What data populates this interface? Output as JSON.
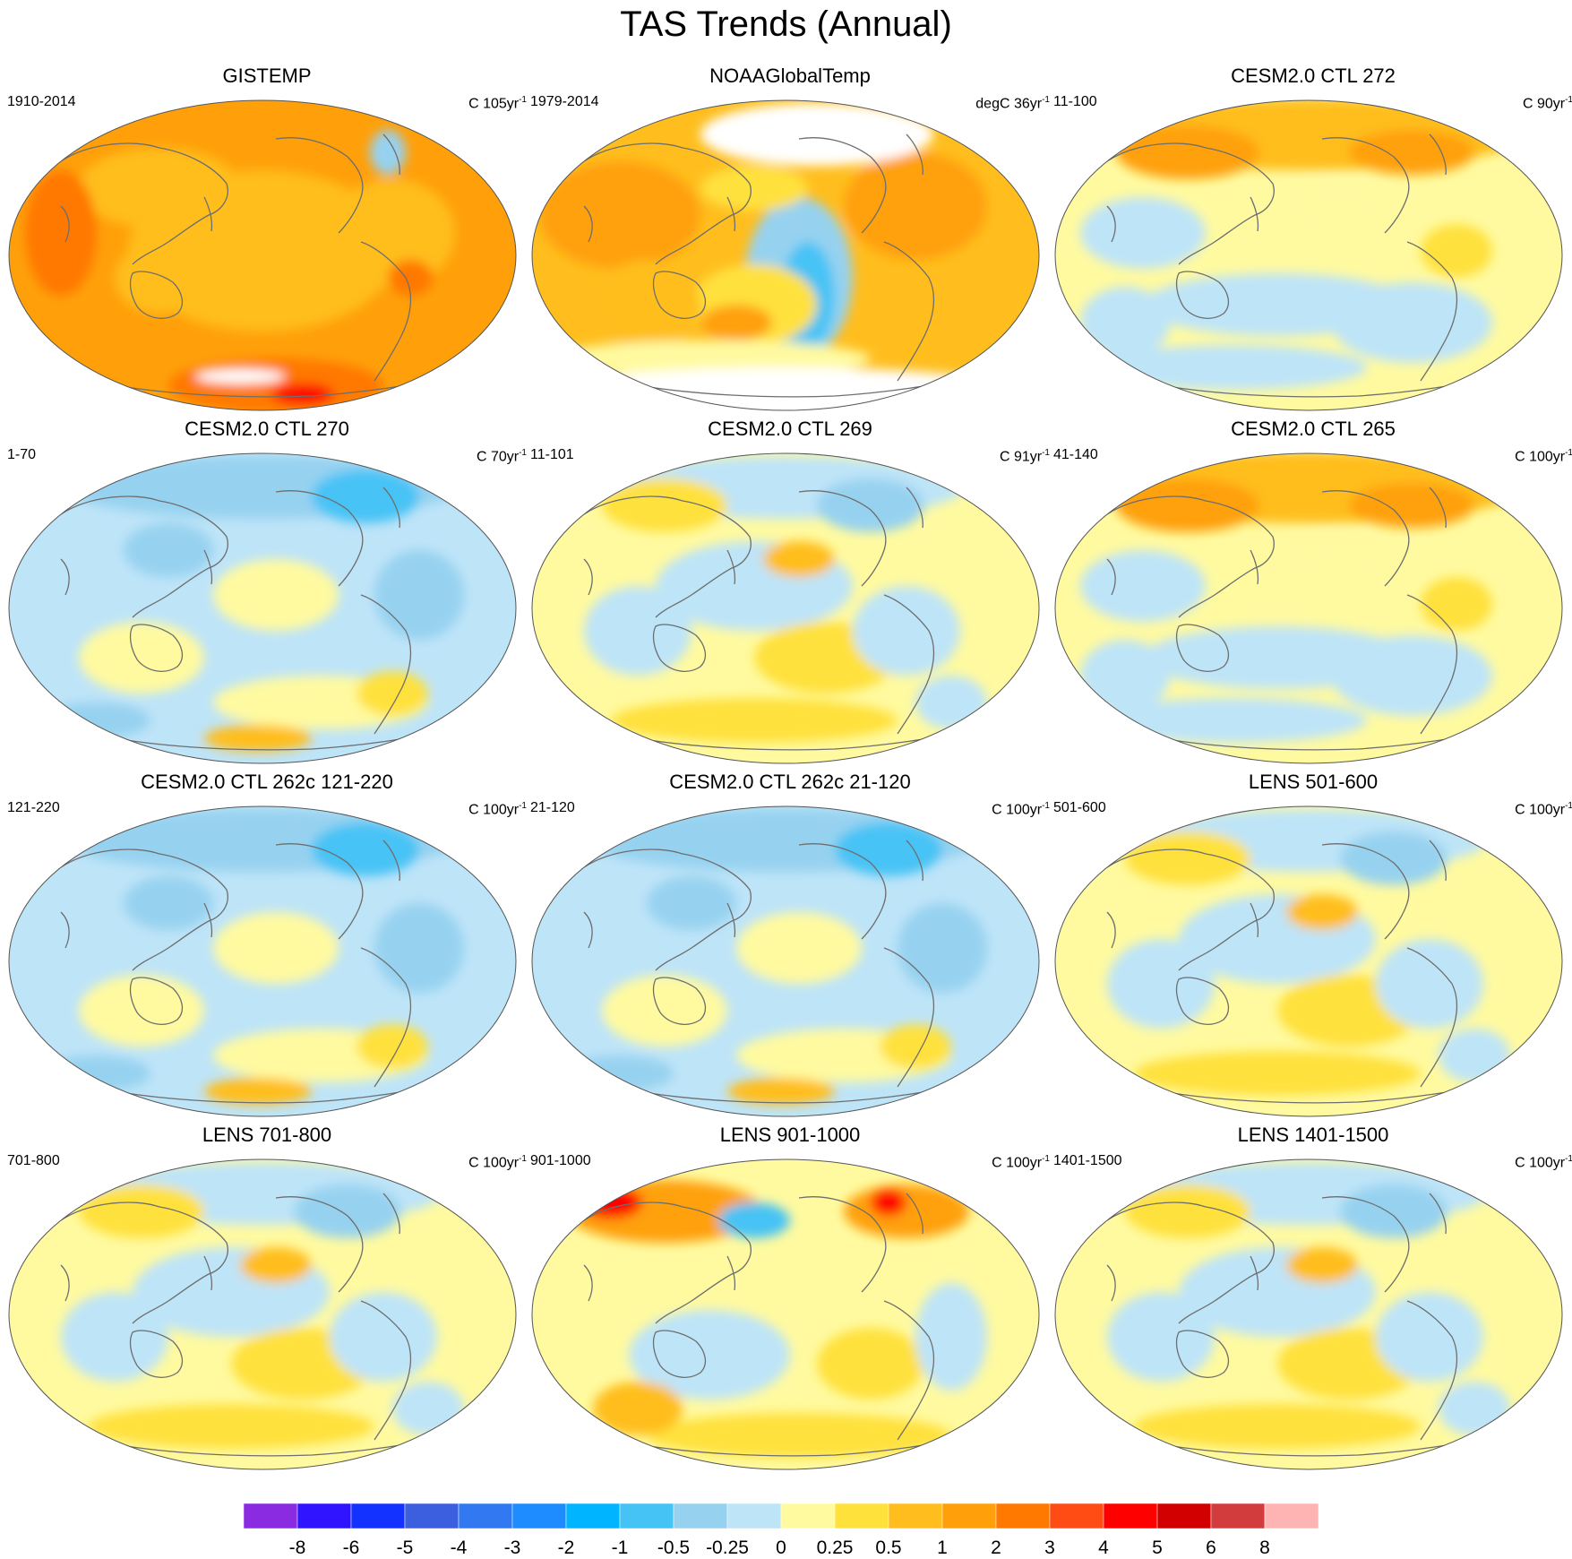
{
  "title": "TAS Trends (Annual)",
  "panels": [
    {
      "title": "GISTEMP",
      "period": "1910-2014",
      "units_prefix": "C 105yr",
      "units_exp": "-1",
      "pattern": "gistemp"
    },
    {
      "title": "NOAAGlobalTemp",
      "period": "1979-2014",
      "units_prefix": "degC 36yr",
      "units_exp": "-1",
      "pattern": "noaa"
    },
    {
      "title": "CESM2.0 CTL 272",
      "period": "11-100",
      "units_prefix": "C 90yr",
      "units_exp": "-1",
      "pattern": "mixwarm"
    },
    {
      "title": "CESM2.0 CTL 270",
      "period": "1-70",
      "units_prefix": "C 70yr",
      "units_exp": "-1",
      "pattern": "cool"
    },
    {
      "title": "CESM2.0 CTL 269",
      "period": "11-101",
      "units_prefix": "C 91yr",
      "units_exp": "-1",
      "pattern": "mix"
    },
    {
      "title": "CESM2.0 CTL 265",
      "period": "41-140",
      "units_prefix": "C 100yr",
      "units_exp": "-1",
      "pattern": "mixwarm"
    },
    {
      "title": "CESM2.0 CTL 262c 121-220",
      "period": "121-220",
      "units_prefix": "C 100yr",
      "units_exp": "-1",
      "pattern": "cool"
    },
    {
      "title": "CESM2.0 CTL 262c 21-120",
      "period": "21-120",
      "units_prefix": "C 100yr",
      "units_exp": "-1",
      "pattern": "cool"
    },
    {
      "title": "LENS 501-600",
      "period": "501-600",
      "units_prefix": "C 100yr",
      "units_exp": "-1",
      "pattern": "mix"
    },
    {
      "title": "LENS 701-800",
      "period": "701-800",
      "units_prefix": "C 100yr",
      "units_exp": "-1",
      "pattern": "mix"
    },
    {
      "title": "LENS 901-1000",
      "period": "901-1000",
      "units_prefix": "C 100yr",
      "units_exp": "-1",
      "pattern": "warm"
    },
    {
      "title": "LENS 1401-1500",
      "period": "1401-1500",
      "units_prefix": "C 100yr",
      "units_exp": "-1",
      "pattern": "mix"
    }
  ],
  "colorbar": {
    "tick_labels": [
      "-8",
      "-6",
      "-5",
      "-4",
      "-3",
      "-2",
      "-1",
      "-0.5",
      "-0.25",
      "0",
      "0.25",
      "0.5",
      "1",
      "2",
      "3",
      "4",
      "5",
      "6",
      "8"
    ],
    "colors": [
      "#8a2be2",
      "#3014ff",
      "#1432ff",
      "#3c5fe0",
      "#3278f0",
      "#1e8cff",
      "#00b4ff",
      "#46c3f5",
      "#96d2f0",
      "#bee4f8",
      "#fffaa0",
      "#ffe13c",
      "#ffbe1e",
      "#ffa00a",
      "#ff7800",
      "#ff4b14",
      "#ff0000",
      "#d20000",
      "#d23c3c",
      "#ffb4b4"
    ]
  }
}
